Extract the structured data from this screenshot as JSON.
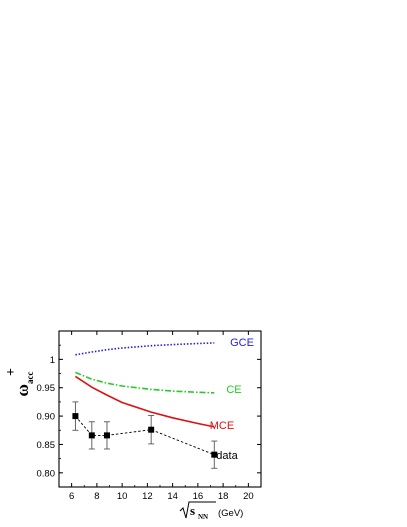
{
  "chart_data": {
    "type": "line",
    "title": "",
    "xlabel": {
      "symbol": "s",
      "subscript": "NN",
      "unit": "(GeV)"
    },
    "ylabel": {
      "symbol": "ω",
      "superscript": "+",
      "subscript": "acc"
    },
    "xlim": [
      5,
      21
    ],
    "ylim": [
      0.775,
      1.05
    ],
    "xticks": [
      6,
      8,
      10,
      12,
      14,
      16,
      18,
      20
    ],
    "yticks": [
      0.8,
      0.85,
      0.9,
      0.95,
      1
    ],
    "ytick_labels": [
      "0.80",
      "0.85",
      "0.90",
      "0.95",
      "1"
    ],
    "grid": false,
    "series": [
      {
        "name": "GCE",
        "style": "dotted",
        "color": "#1f1fe0",
        "x": [
          6.3,
          7.6,
          8.8,
          10,
          12.3,
          14,
          16,
          17.3
        ],
        "y": [
          1.008,
          1.013,
          1.017,
          1.02,
          1.024,
          1.026,
          1.028,
          1.029
        ]
      },
      {
        "name": "CE",
        "style": "dashdot",
        "color": "#22cc22",
        "x": [
          6.3,
          7.6,
          8.8,
          10,
          12.3,
          14,
          16,
          17.3
        ],
        "y": [
          0.977,
          0.965,
          0.958,
          0.953,
          0.947,
          0.944,
          0.942,
          0.941
        ]
      },
      {
        "name": "MCE",
        "style": "solid",
        "color": "#e01010",
        "x": [
          6.3,
          7.6,
          8.8,
          10,
          12.3,
          14,
          16,
          17.3
        ],
        "y": [
          0.97,
          0.951,
          0.937,
          0.924,
          0.907,
          0.897,
          0.887,
          0.881
        ]
      },
      {
        "name": "data",
        "style": "dashed-markers",
        "color": "#000000",
        "x": [
          6.3,
          7.6,
          8.8,
          12.3,
          17.3
        ],
        "y": [
          0.9,
          0.866,
          0.866,
          0.876,
          0.832
        ],
        "err": [
          0.025,
          0.024,
          0.024,
          0.025,
          0.024
        ]
      }
    ]
  }
}
